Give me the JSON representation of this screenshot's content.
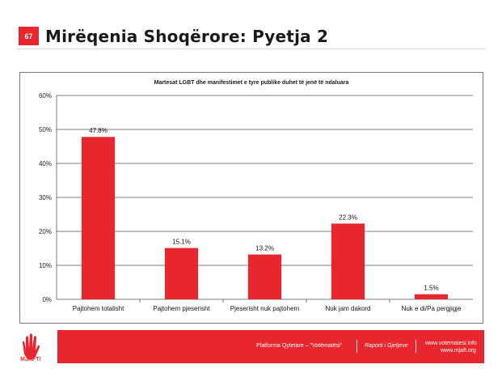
{
  "slide": {
    "number": "67",
    "title": "Mirëqenia Shoqërore: Pyetja 2"
  },
  "chart_data": {
    "type": "bar",
    "title": "Martesat LGBT dhe manifestimet e tyre publike duhet të jenë të ndaluara",
    "categories": [
      "Pajtohem totalisht",
      "Pajtohem pjeserisht",
      "Pjeserisht nuk pajtohem",
      "Nuk jam dakord",
      "Nuk e di/Pa pergjigje"
    ],
    "values": [
      47.8,
      15.1,
      13.2,
      22.3,
      1.5
    ],
    "value_labels": [
      "47.8%",
      "15.1%",
      "13.2%",
      "22.3%",
      "1.5%"
    ],
    "ylim": [
      0,
      60
    ],
    "yticks": [
      "0%",
      "10%",
      "20%",
      "30%",
      "40%",
      "50%",
      "60%"
    ],
    "grid": true,
    "bar_color": "#e8262d"
  },
  "footer": {
    "platform": "Platforma Qytetare – \"Votëmatësi\"",
    "report": "Raporti i Gjetjeve",
    "web1": "www.votematesi.info",
    "web2": "www.mjaft.org"
  },
  "logo": {
    "text": "MJAFT!",
    "icon": "hand-icon"
  },
  "colors": {
    "accent": "#e8262d"
  }
}
